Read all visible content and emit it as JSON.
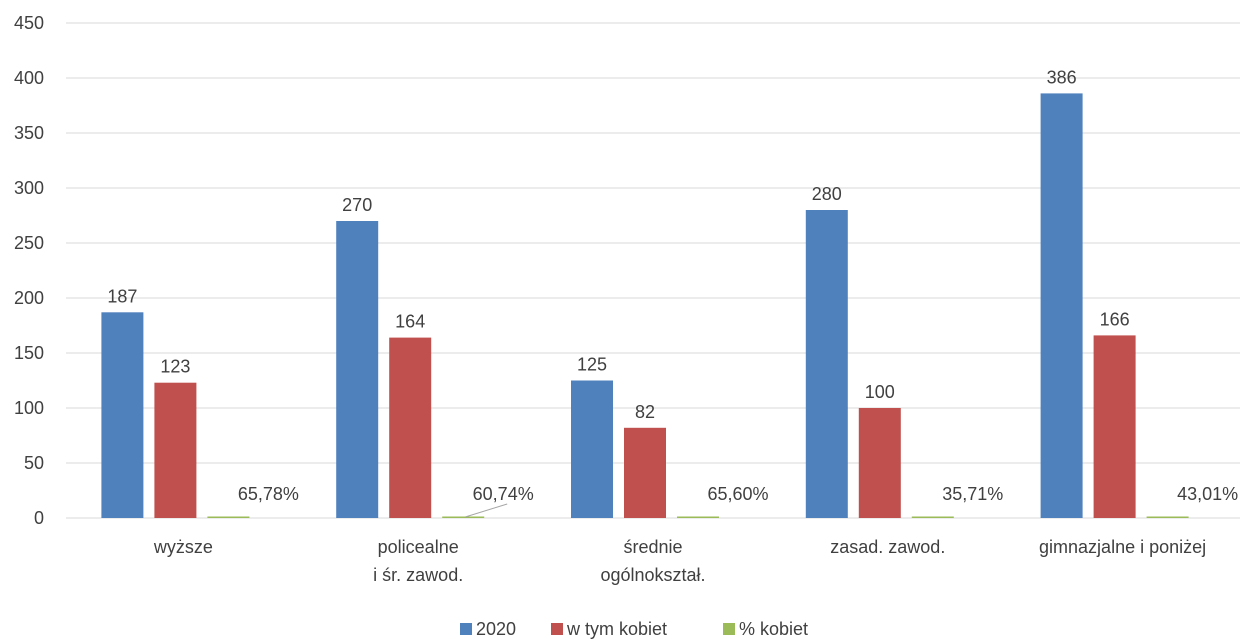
{
  "chart_data": {
    "type": "bar",
    "categories": [
      [
        "wyższe"
      ],
      [
        "policealne",
        "i śr. zawod."
      ],
      [
        "średnie",
        "ogólnokształ."
      ],
      [
        "zasad. zawod."
      ],
      [
        "gimnazjalne i poniżej"
      ]
    ],
    "series": [
      {
        "name": "2020",
        "color": "#4f81bd",
        "values": [
          187,
          270,
          125,
          280,
          386
        ],
        "labels": [
          "187",
          "270",
          "125",
          "280",
          "386"
        ]
      },
      {
        "name": "w tym kobiet",
        "color": "#c0504d",
        "values": [
          123,
          164,
          82,
          100,
          166
        ],
        "labels": [
          "123",
          "164",
          "82",
          "100",
          "166"
        ]
      },
      {
        "name": "% kobiet",
        "color": "#9bbb59",
        "values": [
          0.6578,
          0.6074,
          0.656,
          0.3571,
          0.4301
        ],
        "labels": [
          "65,78%",
          "60,74%",
          "65,60%",
          "35,71%",
          "43,01%"
        ]
      }
    ],
    "ylim": [
      0,
      450
    ],
    "yticks": [
      0,
      50,
      100,
      150,
      200,
      250,
      300,
      350,
      400,
      450
    ],
    "grid": true,
    "legend": "bottom"
  }
}
